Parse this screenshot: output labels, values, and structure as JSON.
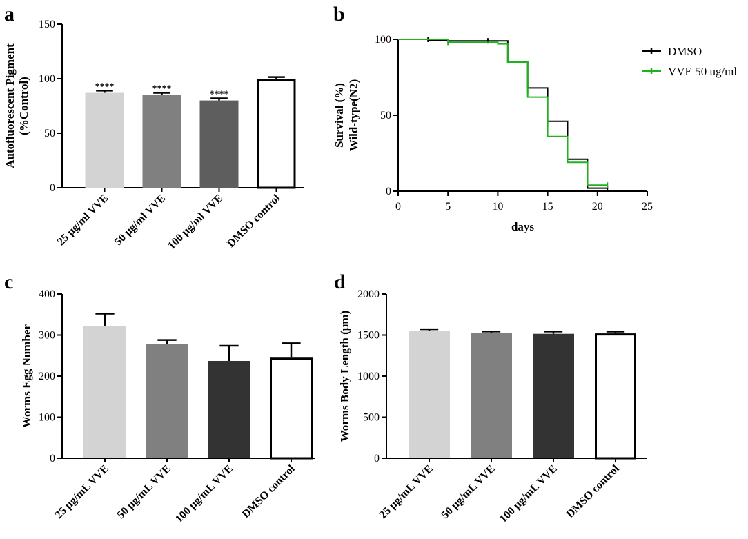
{
  "figure": {
    "panel_letters": [
      "a",
      "b",
      "c",
      "d"
    ]
  },
  "chart_data": [
    {
      "panel": "a",
      "type": "bar",
      "title": "",
      "xlabel": "",
      "ylabel": "Autofluorescent Pigment\n(%Control)",
      "ylabel_lines": [
        "Autofluorescent Pigment",
        "(%Control)"
      ],
      "ylim": [
        0,
        150
      ],
      "yticks": [
        0,
        50,
        100,
        150
      ],
      "categories": [
        "25 μg/ml VVE",
        "50 μg/ml VVE",
        "100 μg/ml VVE",
        "DMSO control"
      ],
      "values": [
        87,
        85,
        80,
        100
      ],
      "errors": [
        2,
        2,
        2,
        1.5
      ],
      "significance": [
        "****",
        "****",
        "****",
        ""
      ],
      "bar_fills": [
        "#d3d3d3",
        "#808080",
        "#5e5e5e",
        "#ffffff"
      ]
    },
    {
      "panel": "b",
      "type": "line",
      "title": "",
      "xlabel": "days",
      "ylabel": "Survival (%)\nWild-type(N2)",
      "ylabel_lines": [
        "Survival (%)",
        "Wild-type(N2)"
      ],
      "xlim": [
        0,
        25
      ],
      "ylim": [
        0,
        100
      ],
      "xticks": [
        0,
        5,
        10,
        15,
        20,
        25
      ],
      "yticks": [
        0,
        50,
        100
      ],
      "legend_position": "top-right",
      "series": [
        {
          "name": "DMSO",
          "color": "#000000",
          "steps": [
            [
              0,
              100
            ],
            [
              3,
              99.5
            ],
            [
              5,
              99
            ],
            [
              11,
              85
            ],
            [
              13,
              68
            ],
            [
              15,
              46
            ],
            [
              17,
              21
            ],
            [
              19,
              2
            ],
            [
              21,
              2
            ]
          ],
          "censor_marks": [
            [
              3,
              100
            ],
            [
              9,
              99
            ],
            [
              21,
              2
            ]
          ]
        },
        {
          "name": "VVE 50 ug/ml",
          "color": "#1db31d",
          "steps": [
            [
              0,
              100
            ],
            [
              5,
              98
            ],
            [
              10,
              97
            ],
            [
              11,
              85
            ],
            [
              13,
              62
            ],
            [
              15,
              36
            ],
            [
              17,
              19
            ],
            [
              19,
              4
            ],
            [
              21,
              4
            ]
          ],
          "censor_marks": [
            [
              5,
              98
            ],
            [
              13,
              66
            ],
            [
              15,
              44
            ],
            [
              21,
              4
            ]
          ]
        }
      ]
    },
    {
      "panel": "c",
      "type": "bar",
      "title": "",
      "xlabel": "",
      "ylabel": "Worms Egg Number",
      "ylabel_lines": [
        "Worms Egg Number"
      ],
      "ylim": [
        0,
        400
      ],
      "yticks": [
        0,
        100,
        200,
        300,
        400
      ],
      "categories": [
        "25 μg/mL VVE",
        "50 μg/mL VVE",
        "100 μg/mL VVE",
        "DMSO control"
      ],
      "values": [
        322,
        278,
        237,
        245
      ],
      "errors": [
        30,
        10,
        37,
        35
      ],
      "significance": [
        "",
        "",
        "",
        ""
      ],
      "bar_fills": [
        "#d3d3d3",
        "#808080",
        "#333333",
        "#ffffff"
      ]
    },
    {
      "panel": "d",
      "type": "bar",
      "title": "",
      "xlabel": "",
      "ylabel": "Worms Body Length (μm)",
      "ylabel_lines": [
        "Worms Body Length (μm)"
      ],
      "ylim": [
        0,
        2000
      ],
      "yticks": [
        0,
        500,
        1000,
        1500,
        2000
      ],
      "categories": [
        "25 μg/mL VVE",
        "50 μg/mL VVE",
        "100 μg/mL VVE",
        "DMSO control"
      ],
      "values": [
        1550,
        1525,
        1515,
        1520
      ],
      "errors": [
        20,
        18,
        28,
        22
      ],
      "significance": [
        "",
        "",
        "",
        ""
      ],
      "bar_fills": [
        "#d3d3d3",
        "#808080",
        "#333333",
        "#ffffff"
      ]
    }
  ]
}
